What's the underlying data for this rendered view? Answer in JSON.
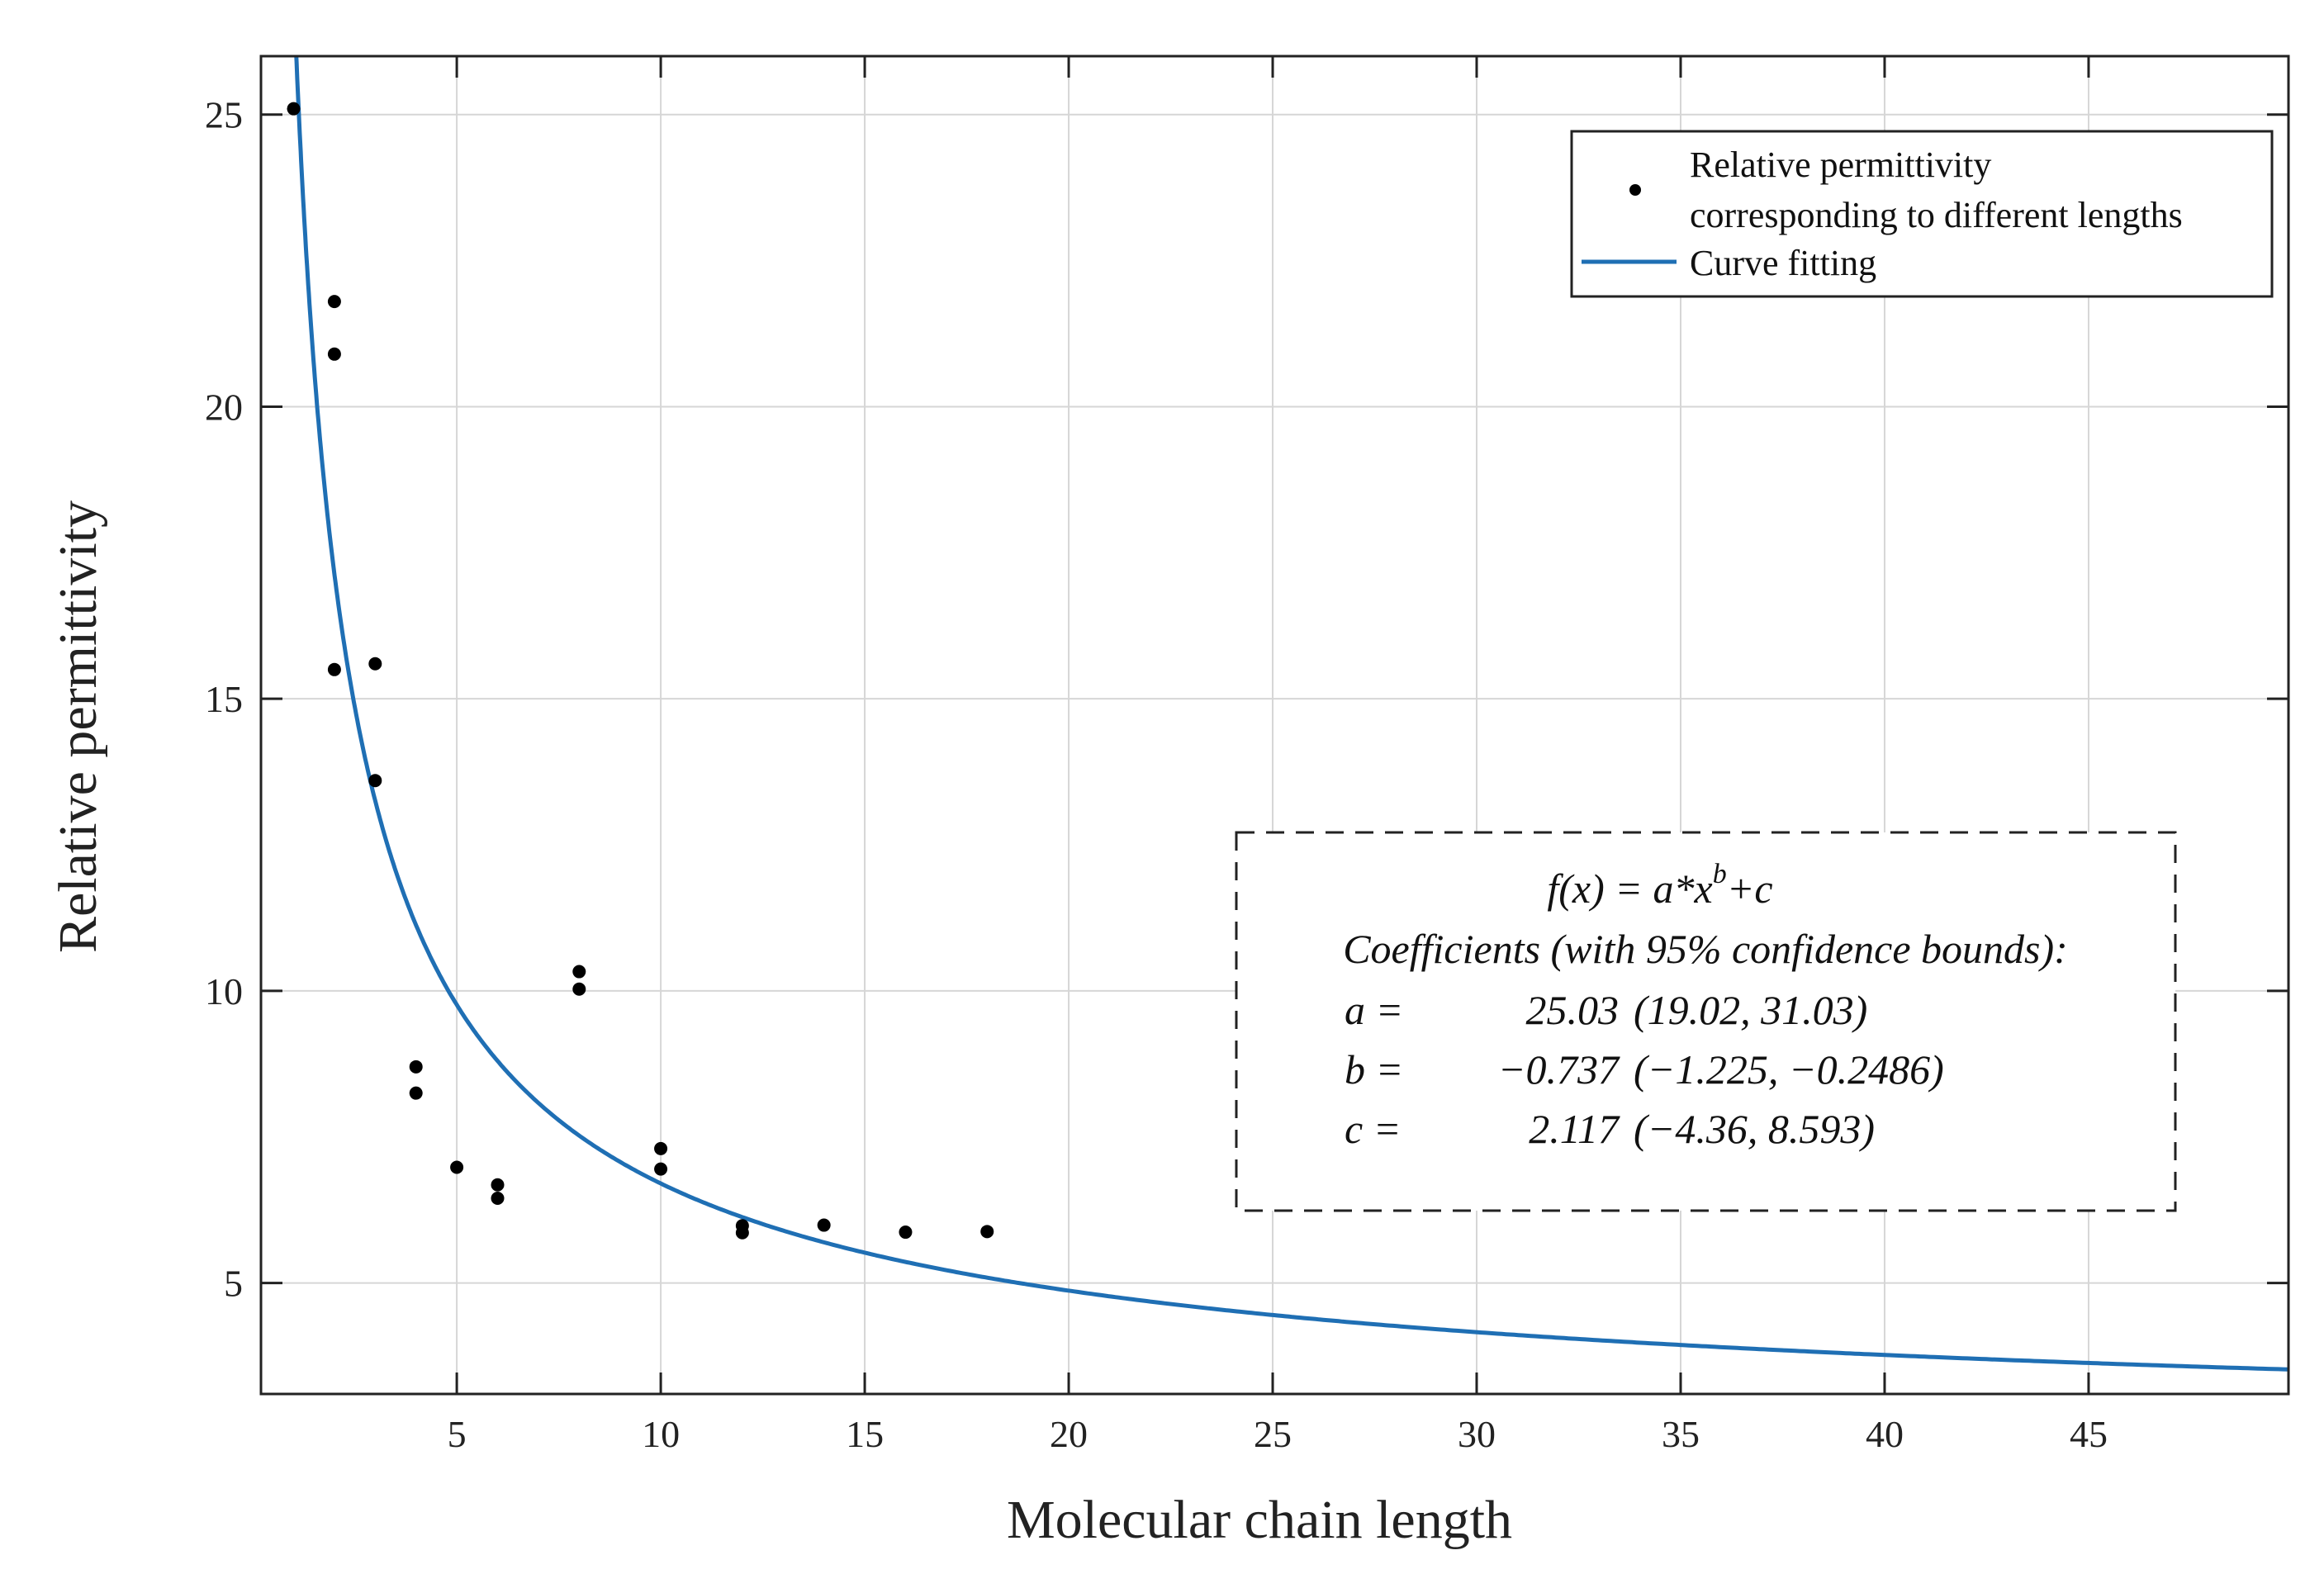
{
  "chart_data": {
    "type": "scatter",
    "title": "",
    "xlabel": "Molecular chain length",
    "ylabel": "Relative permittivity",
    "xlim": [
      0.2,
      49.9
    ],
    "ylim": [
      3.1,
      26.0
    ],
    "xticks": [
      5,
      10,
      15,
      20,
      25,
      30,
      35,
      40,
      45
    ],
    "yticks": [
      5,
      10,
      15,
      20,
      25
    ],
    "grid": true,
    "legend": {
      "position": "top-right",
      "entries": [
        {
          "marker": "dot",
          "lines": [
            "Relative permittivity",
            "corresponding to different lengths"
          ]
        },
        {
          "marker": "line",
          "lines": [
            "Curve fitting"
          ]
        }
      ]
    },
    "series": [
      {
        "name": "Relative permittivity corresponding to different lengths",
        "kind": "scatter",
        "color": "#000000",
        "x": [
          1,
          2,
          2,
          2,
          3,
          3,
          4,
          4,
          5,
          6,
          6,
          8,
          8,
          10,
          10,
          12,
          12,
          14,
          16,
          18
        ],
        "y": [
          25.1,
          21.8,
          20.9,
          15.5,
          15.6,
          13.6,
          8.7,
          8.25,
          6.98,
          6.68,
          6.45,
          10.33,
          10.03,
          7.3,
          6.95,
          5.98,
          5.86,
          5.99,
          5.87,
          5.88
        ]
      },
      {
        "name": "Curve fitting",
        "kind": "line",
        "color": "#1f6fb4",
        "function": "power",
        "a": 25.03,
        "b": -0.737,
        "c": 2.117,
        "x_range": [
          0.95,
          49.9
        ]
      }
    ],
    "annotation": {
      "formula_main": "f(x) = a*x",
      "formula_exp": "b",
      "formula_tail": "+c",
      "header": "Coefficients (with 95% confidence bounds):",
      "coefficients": [
        {
          "name": "a =",
          "value": "25.03",
          "bounds": "(19.02, 31.03)"
        },
        {
          "name": "b =",
          "value": "−0.737",
          "bounds": "(−1.225, −0.2486)"
        },
        {
          "name": "c =",
          "value": "2.117",
          "bounds": "(−4.36, 8.593)"
        }
      ]
    }
  }
}
